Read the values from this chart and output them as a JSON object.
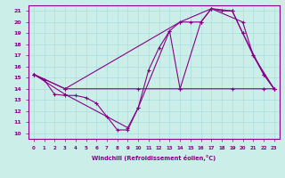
{
  "xlabel": "Windchill (Refroidissement éolien,°C)",
  "xlim": [
    -0.5,
    23.5
  ],
  "ylim": [
    9.5,
    21.5
  ],
  "yticks": [
    10,
    11,
    12,
    13,
    14,
    15,
    16,
    17,
    18,
    19,
    20,
    21
  ],
  "xticks": [
    0,
    1,
    2,
    3,
    4,
    5,
    6,
    7,
    8,
    9,
    10,
    11,
    12,
    13,
    14,
    15,
    16,
    17,
    18,
    19,
    20,
    21,
    22,
    23
  ],
  "bg_color": "#cceee8",
  "line_color": "#880088",
  "grid_color": "#aadddd",
  "series": [
    {
      "x": [
        0,
        1,
        2,
        3,
        4,
        5,
        6,
        7,
        8,
        9,
        10,
        11,
        12,
        13,
        14,
        15,
        16,
        17,
        18,
        19,
        20,
        21,
        22,
        23
      ],
      "y": [
        15.3,
        14.8,
        13.5,
        13.4,
        13.4,
        13.2,
        12.7,
        11.5,
        10.3,
        10.3,
        12.3,
        15.7,
        17.7,
        19.2,
        20.0,
        20.0,
        20.0,
        21.2,
        21.0,
        21.0,
        19.0,
        17.0,
        15.3,
        14.0
      ]
    },
    {
      "x": [
        0,
        3,
        9,
        10,
        13,
        14,
        16,
        17,
        19,
        20,
        22,
        23
      ],
      "y": [
        15.3,
        13.5,
        10.5,
        12.3,
        19.2,
        14.0,
        20.0,
        21.2,
        21.0,
        19.0,
        15.3,
        14.0
      ]
    },
    {
      "x": [
        0,
        3,
        10,
        14,
        19,
        22,
        23
      ],
      "y": [
        15.3,
        14.0,
        14.0,
        14.0,
        14.0,
        14.0,
        14.0
      ]
    },
    {
      "x": [
        0,
        3,
        14,
        17,
        20,
        21,
        23
      ],
      "y": [
        15.3,
        14.0,
        20.0,
        21.2,
        20.0,
        17.0,
        14.0
      ]
    }
  ]
}
